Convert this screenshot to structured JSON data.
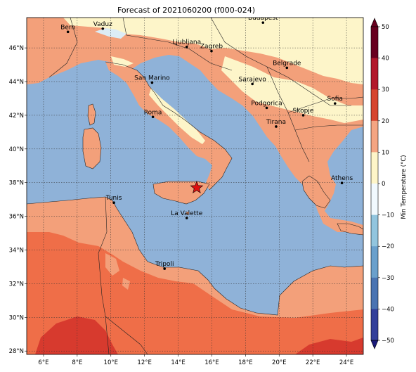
{
  "title": "Forecast of 2021060200 (f000-024)",
  "colorbar": {
    "label": "Min Temperature (°C)",
    "ticks": [
      "50",
      "40",
      "30",
      "20",
      "10",
      "0",
      "−10",
      "−20",
      "−30",
      "−40",
      "−50"
    ],
    "colors": [
      "#67001f",
      "#b2182b",
      "#d6452f",
      "#f4a582",
      "#fef5c8",
      "#f1f9fe",
      "#92c5de",
      "#6aa0cc",
      "#4a74b2",
      "#33409a",
      "#1a1a7a"
    ]
  },
  "axes": {
    "x_ticks": [
      "6°E",
      "8°E",
      "10°E",
      "12°E",
      "14°E",
      "16°E",
      "18°E",
      "20°E",
      "22°E",
      "24°E"
    ],
    "y_ticks": [
      "46°N",
      "44°N",
      "42°N",
      "40°N",
      "38°N",
      "36°N",
      "34°N",
      "32°N",
      "30°N",
      "28°N"
    ]
  },
  "map_colors": {
    "sea": "#8fb2d8",
    "cool_land": "#fdf5c9",
    "mild_land": "#f3a07a",
    "warm_land": "#ef6e48",
    "hot_land": "#d73a2e",
    "snow": "#dcecf6"
  },
  "cities": [
    {
      "name": "Bern",
      "lon": 7.45,
      "lat": 46.95
    },
    {
      "name": "Vaduz",
      "lon": 9.52,
      "lat": 47.14
    },
    {
      "name": "Budapest",
      "lon": 19.04,
      "lat": 47.5
    },
    {
      "name": "Ljubljana",
      "lon": 14.51,
      "lat": 46.06
    },
    {
      "name": "Zagreb",
      "lon": 15.98,
      "lat": 45.81
    },
    {
      "name": "San Marino",
      "lon": 12.45,
      "lat": 43.94
    },
    {
      "name": "Belgrade",
      "lon": 20.46,
      "lat": 44.82
    },
    {
      "name": "Sarajevo",
      "lon": 18.41,
      "lat": 43.86
    },
    {
      "name": "Roma",
      "lon": 12.5,
      "lat": 41.9
    },
    {
      "name": "Podgorica",
      "lon": 19.26,
      "lat": 42.44
    },
    {
      "name": "Skopje",
      "lon": 21.43,
      "lat": 42.0
    },
    {
      "name": "Sofia",
      "lon": 23.32,
      "lat": 42.7
    },
    {
      "name": "Tirana",
      "lon": 19.82,
      "lat": 41.33
    },
    {
      "name": "Athens",
      "lon": 23.73,
      "lat": 37.98
    },
    {
      "name": "Tunis",
      "lon": 10.18,
      "lat": 36.81
    },
    {
      "name": "La Valette",
      "lon": 14.51,
      "lat": 35.9
    },
    {
      "name": "Tripoli",
      "lon": 13.19,
      "lat": 32.89
    }
  ],
  "marker": {
    "name": "star-marker",
    "lon": 15.1,
    "lat": 37.7
  }
}
